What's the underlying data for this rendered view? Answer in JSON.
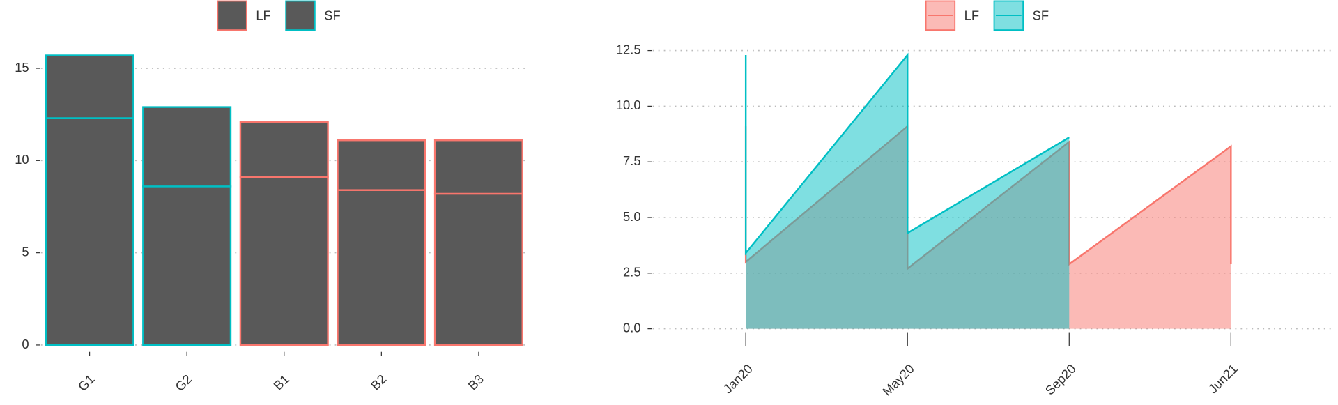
{
  "chart_data": [
    {
      "type": "bar",
      "legend": [
        {
          "name": "LF",
          "color": "#f8766d"
        },
        {
          "name": "SF",
          "color": "#00bfc4"
        }
      ],
      "categories": [
        "G1",
        "G2",
        "B1",
        "B2",
        "B3"
      ],
      "outline_group": [
        "SF",
        "SF",
        "LF",
        "LF",
        "LF"
      ],
      "fill": "#595959",
      "stacks": [
        {
          "values": [
            12.3,
            8.6,
            9.1,
            8.4,
            8.2
          ]
        },
        {
          "values": [
            3.4,
            4.3,
            3.0,
            2.7,
            2.9
          ]
        }
      ],
      "ylim": [
        -0.37,
        16.15
      ],
      "yticks": [
        0,
        5,
        10,
        15
      ],
      "grid": true
    },
    {
      "type": "area",
      "series": [
        {
          "name": "LF",
          "color": "#f8766d",
          "x": [
            0,
            0,
            1,
            1,
            2,
            2,
            2,
            3,
            3
          ],
          "values": [
            9.1,
            3.0,
            9.1,
            2.7,
            8.4,
            4.3,
            2.9,
            8.2,
            2.9
          ]
        },
        {
          "name": "SF",
          "color": "#00bfc4",
          "x": [
            0,
            0,
            1,
            1,
            2
          ],
          "values": [
            12.3,
            3.4,
            12.3,
            4.3,
            8.6
          ]
        }
      ],
      "xlim": [
        -0.575,
        3.62
      ],
      "xticks": [
        {
          "value": 0,
          "label": "Jan20"
        },
        {
          "value": 1,
          "label": "May20"
        },
        {
          "value": 2,
          "label": "Sep20"
        },
        {
          "value": 3,
          "label": "Jun21"
        }
      ],
      "ylim": [
        -0.27,
        13.04
      ],
      "yticks": [
        {
          "value": 0,
          "label": "0.0"
        },
        {
          "value": 2.5,
          "label": "2.5"
        },
        {
          "value": 5,
          "label": "5.0"
        },
        {
          "value": 7.5,
          "label": "7.5"
        },
        {
          "value": 10,
          "label": "10.0"
        },
        {
          "value": 12.5,
          "label": "12.5"
        }
      ],
      "grid": true
    }
  ]
}
